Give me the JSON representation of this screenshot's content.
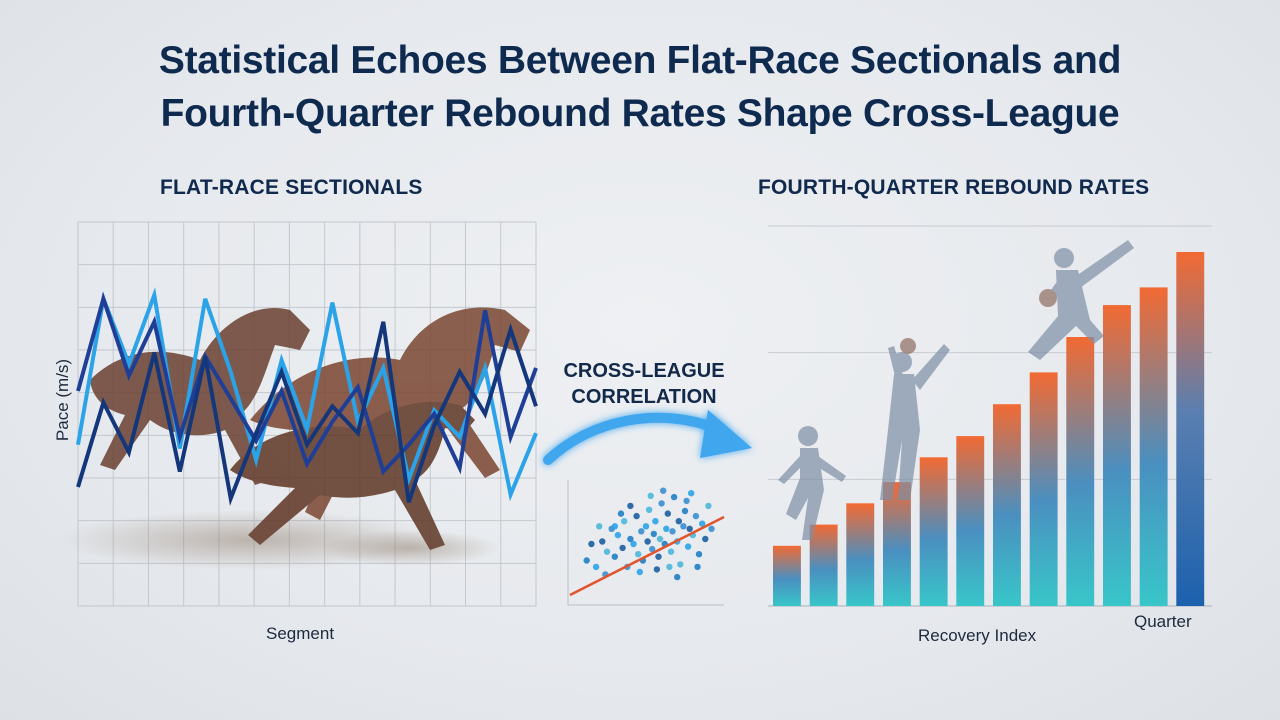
{
  "title_line1": "Statistical Echoes Between Flat-Race Sectionals and",
  "title_line2": "Fourth-Quarter Rebound Rates Shape Cross-League",
  "link_label_line1": "CROSS-LEAGUE",
  "link_label_line2": "CORRELATION",
  "colors": {
    "dark_blue": "#13377a",
    "navy": "#1f3f97",
    "light_blue": "#2aa3e8",
    "orange": "#f06a3a",
    "teal": "#39c0c8",
    "trend_red": "#e2542d"
  },
  "icons": [
    "horse-illustration",
    "basketball-player-silhouette",
    "arrow-curve-icon"
  ],
  "chart_data": [
    {
      "type": "line",
      "title": "FLAT-RACE SECTIONALS",
      "xlabel": "Segment",
      "ylabel": "Pace (m/s)",
      "grid": true,
      "x": [
        0,
        1,
        2,
        3,
        4,
        5,
        6,
        7,
        8,
        9,
        10,
        11,
        12,
        13,
        14,
        15,
        16,
        17,
        18
      ],
      "ylim": [
        0,
        10
      ],
      "series": [
        {
          "color": "#2aa3e8",
          "values": [
            4.2,
            8.0,
            6.3,
            8.1,
            4.1,
            8.0,
            6.1,
            3.8,
            6.4,
            4.6,
            7.9,
            4.8,
            6.2,
            3.3,
            5.1,
            4.4,
            6.2,
            2.9,
            4.5
          ]
        },
        {
          "color": "#1f3f97",
          "values": [
            5.6,
            8.0,
            6.0,
            7.4,
            4.4,
            6.5,
            5.4,
            4.3,
            5.6,
            3.7,
            4.8,
            5.7,
            3.5,
            4.2,
            5.0,
            3.6,
            7.7,
            4.4,
            6.2
          ]
        },
        {
          "color": "#13377a",
          "values": [
            3.1,
            5.3,
            4.0,
            6.6,
            3.5,
            6.5,
            2.8,
            4.5,
            6.1,
            4.2,
            5.2,
            4.5,
            7.4,
            2.7,
            4.7,
            6.1,
            5.0,
            7.2,
            5.2
          ]
        }
      ]
    },
    {
      "type": "bar",
      "title": "FOURTH-QUARTER REBOUND RATES",
      "xlabel": "Recovery Index",
      "xlabel_secondary": "Quarter",
      "ylim": [
        0,
        100
      ],
      "grid": true,
      "values": [
        17,
        23,
        29,
        35,
        42,
        48,
        57,
        66,
        76,
        85,
        90,
        100
      ]
    },
    {
      "type": "scatter",
      "trend_line": true,
      "points": [
        [
          0.12,
          0.35
        ],
        [
          0.18,
          0.3
        ],
        [
          0.22,
          0.5
        ],
        [
          0.25,
          0.42
        ],
        [
          0.28,
          0.6
        ],
        [
          0.3,
          0.38
        ],
        [
          0.32,
          0.55
        ],
        [
          0.35,
          0.45
        ],
        [
          0.36,
          0.66
        ],
        [
          0.38,
          0.3
        ],
        [
          0.4,
          0.52
        ],
        [
          0.42,
          0.48
        ],
        [
          0.44,
          0.7
        ],
        [
          0.45,
          0.4
        ],
        [
          0.47,
          0.58
        ],
        [
          0.48,
          0.35
        ],
        [
          0.5,
          0.62
        ],
        [
          0.51,
          0.5
        ],
        [
          0.52,
          0.75
        ],
        [
          0.54,
          0.44
        ],
        [
          0.55,
          0.56
        ],
        [
          0.56,
          0.66
        ],
        [
          0.58,
          0.38
        ],
        [
          0.59,
          0.52
        ],
        [
          0.6,
          0.8
        ],
        [
          0.62,
          0.48
        ],
        [
          0.63,
          0.6
        ],
        [
          0.64,
          0.72
        ],
        [
          0.66,
          0.42
        ],
        [
          0.67,
          0.58
        ],
        [
          0.68,
          0.85
        ],
        [
          0.7,
          0.5
        ],
        [
          0.71,
          0.66
        ],
        [
          0.72,
          0.32
        ],
        [
          0.74,
          0.62
        ],
        [
          0.75,
          0.74
        ],
        [
          0.77,
          0.46
        ],
        [
          0.78,
          0.6
        ],
        [
          0.8,
          0.55
        ],
        [
          0.82,
          0.7
        ],
        [
          0.84,
          0.4
        ],
        [
          0.86,
          0.64
        ],
        [
          0.88,
          0.52
        ],
        [
          0.9,
          0.78
        ],
        [
          0.24,
          0.24
        ],
        [
          0.34,
          0.72
        ],
        [
          0.46,
          0.26
        ],
        [
          0.57,
          0.28
        ],
        [
          0.65,
          0.3
        ],
        [
          0.76,
          0.82
        ],
        [
          0.83,
          0.3
        ],
        [
          0.3,
          0.62
        ],
        [
          0.4,
          0.78
        ],
        [
          0.53,
          0.86
        ],
        [
          0.61,
          0.9
        ],
        [
          0.7,
          0.22
        ],
        [
          0.79,
          0.88
        ],
        [
          0.15,
          0.48
        ],
        [
          0.2,
          0.62
        ],
        [
          0.92,
          0.6
        ]
      ]
    }
  ]
}
